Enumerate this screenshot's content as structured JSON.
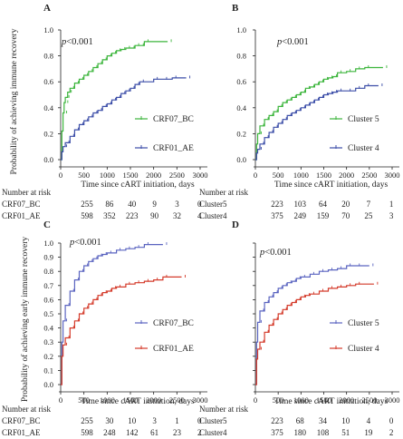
{
  "colors": {
    "green": "#3cb53c",
    "blue": "#3c4ea8",
    "red": "#d43a2a",
    "purpleblue": "#5a64c0"
  },
  "shared": {
    "ylabel_top": "Probability of achieving immune recovery",
    "ylabel_bottom": "Probability of achieving early immune recovery",
    "xlabel": "Time since cART initiation, days",
    "risk_header": "Number at risk"
  },
  "chart_data": [
    {
      "panel": "A",
      "type": "line",
      "step": true,
      "pvalue": "p<0.001",
      "xlim": [
        0,
        3000
      ],
      "ylim": [
        0,
        1
      ],
      "xticks": [
        0,
        500,
        1000,
        1500,
        2000,
        2500,
        3000
      ],
      "yticks": [
        "0.0",
        "0.2",
        "0.4",
        "0.6",
        "0.8",
        "1.0"
      ],
      "series": [
        {
          "name": "CRF07_BC",
          "color": "green",
          "x": [
            0,
            25,
            50,
            75,
            100,
            150,
            200,
            300,
            400,
            500,
            600,
            700,
            800,
            900,
            1000,
            1100,
            1200,
            1300,
            1400,
            1500,
            1600,
            1700,
            1800,
            2300
          ],
          "y": [
            0,
            0.22,
            0.36,
            0.44,
            0.48,
            0.52,
            0.55,
            0.59,
            0.62,
            0.65,
            0.68,
            0.71,
            0.74,
            0.77,
            0.8,
            0.82,
            0.84,
            0.85,
            0.86,
            0.86,
            0.88,
            0.88,
            0.91,
            0.91
          ]
        },
        {
          "name": "CRF01_AE",
          "color": "blue",
          "x": [
            0,
            25,
            50,
            100,
            200,
            300,
            400,
            500,
            600,
            700,
            800,
            900,
            1000,
            1100,
            1200,
            1300,
            1400,
            1500,
            1600,
            1700,
            2000,
            2200,
            2400,
            2700
          ],
          "y": [
            0,
            0.06,
            0.1,
            0.13,
            0.18,
            0.23,
            0.27,
            0.3,
            0.33,
            0.36,
            0.38,
            0.41,
            0.43,
            0.46,
            0.48,
            0.51,
            0.53,
            0.55,
            0.58,
            0.6,
            0.62,
            0.62,
            0.63,
            0.63
          ]
        }
      ],
      "risk_table": {
        "times": [
          "0",
          "500",
          "1000",
          "1500",
          "2000",
          "2500"
        ],
        "rows": [
          {
            "label": "CRF07_BC",
            "values": [
              "255",
              "86",
              "40",
              "9",
              "3",
              "0"
            ]
          },
          {
            "label": "CRF01_AE",
            "values": [
              "598",
              "352",
              "223",
              "90",
              "32",
              "4"
            ]
          }
        ]
      }
    },
    {
      "panel": "B",
      "type": "line",
      "step": true,
      "pvalue": "p<0.001",
      "xlim": [
        0,
        3000
      ],
      "ylim": [
        0,
        1
      ],
      "xticks": [
        0,
        500,
        1000,
        1500,
        2000,
        2500,
        3000
      ],
      "yticks": [
        "0.0",
        "0.2",
        "0.4",
        "0.6",
        "0.8",
        "1.0"
      ],
      "series": [
        {
          "name": "Cluster 5",
          "color": "green",
          "x": [
            0,
            25,
            50,
            100,
            200,
            300,
            400,
            500,
            600,
            700,
            800,
            900,
            1000,
            1100,
            1200,
            1300,
            1400,
            1500,
            1600,
            1700,
            1800,
            2000,
            2200,
            2400,
            2800
          ],
          "y": [
            0,
            0.12,
            0.2,
            0.26,
            0.31,
            0.34,
            0.37,
            0.41,
            0.44,
            0.46,
            0.48,
            0.5,
            0.52,
            0.55,
            0.56,
            0.58,
            0.6,
            0.62,
            0.63,
            0.64,
            0.67,
            0.68,
            0.7,
            0.71,
            0.71
          ]
        },
        {
          "name": "Cluster 4",
          "color": "blue",
          "x": [
            0,
            25,
            50,
            100,
            200,
            300,
            400,
            500,
            600,
            700,
            800,
            900,
            1000,
            1100,
            1200,
            1300,
            1400,
            1500,
            1600,
            1700,
            1800,
            2000,
            2200,
            2400,
            2700
          ],
          "y": [
            0,
            0.05,
            0.08,
            0.12,
            0.17,
            0.21,
            0.25,
            0.28,
            0.31,
            0.34,
            0.36,
            0.38,
            0.4,
            0.42,
            0.44,
            0.46,
            0.48,
            0.5,
            0.51,
            0.52,
            0.53,
            0.53,
            0.55,
            0.57,
            0.57
          ]
        }
      ],
      "risk_table": {
        "times": [
          "0",
          "500",
          "1000",
          "1500",
          "2000",
          "2500"
        ],
        "rows": [
          {
            "label": "Cluster5",
            "values": [
              "223",
              "103",
              "64",
              "20",
              "7",
              "1"
            ]
          },
          {
            "label": "Cluster4",
            "values": [
              "375",
              "249",
              "159",
              "70",
              "25",
              "3"
            ]
          }
        ]
      }
    },
    {
      "panel": "C",
      "type": "line",
      "step": true,
      "pvalue": "p<0.001",
      "xlim": [
        0,
        3000
      ],
      "ylim": [
        0,
        1
      ],
      "xticks": [
        0,
        500,
        1000,
        1500,
        2000,
        2500,
        3000
      ],
      "yticks": [
        "0.0",
        "0.1",
        "0.2",
        "0.3",
        "0.4",
        "0.5",
        "0.6",
        "0.7",
        "0.8",
        "0.9",
        "1.0"
      ],
      "series": [
        {
          "name": "CRF07_BC",
          "color": "purpleblue",
          "x": [
            0,
            25,
            50,
            100,
            200,
            300,
            400,
            500,
            600,
            700,
            800,
            900,
            1000,
            1200,
            1400,
            1600,
            1800,
            2200
          ],
          "y": [
            0,
            0.3,
            0.45,
            0.56,
            0.66,
            0.74,
            0.8,
            0.84,
            0.87,
            0.89,
            0.91,
            0.92,
            0.93,
            0.95,
            0.96,
            0.97,
            0.99,
            0.99
          ]
        },
        {
          "name": "CRF01_AE",
          "color": "red",
          "x": [
            0,
            25,
            50,
            100,
            200,
            300,
            400,
            500,
            600,
            700,
            800,
            900,
            1000,
            1100,
            1200,
            1400,
            1600,
            1800,
            2000,
            2200,
            2600
          ],
          "y": [
            0,
            0.2,
            0.28,
            0.33,
            0.4,
            0.45,
            0.5,
            0.54,
            0.57,
            0.6,
            0.63,
            0.65,
            0.66,
            0.68,
            0.69,
            0.71,
            0.72,
            0.73,
            0.74,
            0.76,
            0.76
          ]
        }
      ],
      "risk_table": {
        "times": [
          "0",
          "500",
          "1000",
          "1500",
          "2000",
          "2500"
        ],
        "rows": [
          {
            "label": "CRF07_BC",
            "values": [
              "255",
              "30",
              "10",
              "3",
              "1",
              "0"
            ]
          },
          {
            "label": "CRF01_AE",
            "values": [
              "598",
              "248",
              "142",
              "61",
              "23",
              "2"
            ]
          }
        ]
      }
    },
    {
      "panel": "D",
      "type": "line",
      "step": true,
      "pvalue": "p<0.001",
      "xlim": [
        0,
        3000
      ],
      "ylim": [
        0,
        1
      ],
      "xticks": [
        0,
        500,
        1000,
        1500,
        2000,
        2500,
        3000
      ],
      "yticks": [],
      "series": [
        {
          "name": "Cluster 5",
          "color": "purpleblue",
          "x": [
            0,
            25,
            50,
            100,
            200,
            300,
            400,
            500,
            600,
            700,
            800,
            900,
            1000,
            1200,
            1400,
            1600,
            1800,
            2000,
            2200,
            2500
          ],
          "y": [
            0,
            0.3,
            0.44,
            0.52,
            0.58,
            0.62,
            0.65,
            0.68,
            0.7,
            0.72,
            0.73,
            0.75,
            0.76,
            0.78,
            0.8,
            0.81,
            0.82,
            0.84,
            0.84,
            0.84
          ]
        },
        {
          "name": "Cluster 4",
          "color": "red",
          "x": [
            0,
            25,
            50,
            100,
            200,
            300,
            400,
            500,
            600,
            700,
            800,
            900,
            1000,
            1100,
            1200,
            1400,
            1600,
            1800,
            2000,
            2200,
            2600
          ],
          "y": [
            0,
            0.18,
            0.25,
            0.3,
            0.37,
            0.42,
            0.46,
            0.5,
            0.53,
            0.56,
            0.58,
            0.6,
            0.62,
            0.63,
            0.64,
            0.66,
            0.68,
            0.69,
            0.7,
            0.71,
            0.71
          ]
        }
      ],
      "risk_table": {
        "times": [
          "0",
          "500",
          "1000",
          "1500",
          "2000",
          "2500"
        ],
        "rows": [
          {
            "label": "Cluster5",
            "values": [
              "223",
              "68",
              "34",
              "10",
              "4",
              "0"
            ]
          },
          {
            "label": "Cluster4",
            "values": [
              "375",
              "180",
              "108",
              "51",
              "19",
              "2"
            ]
          }
        ]
      }
    }
  ]
}
